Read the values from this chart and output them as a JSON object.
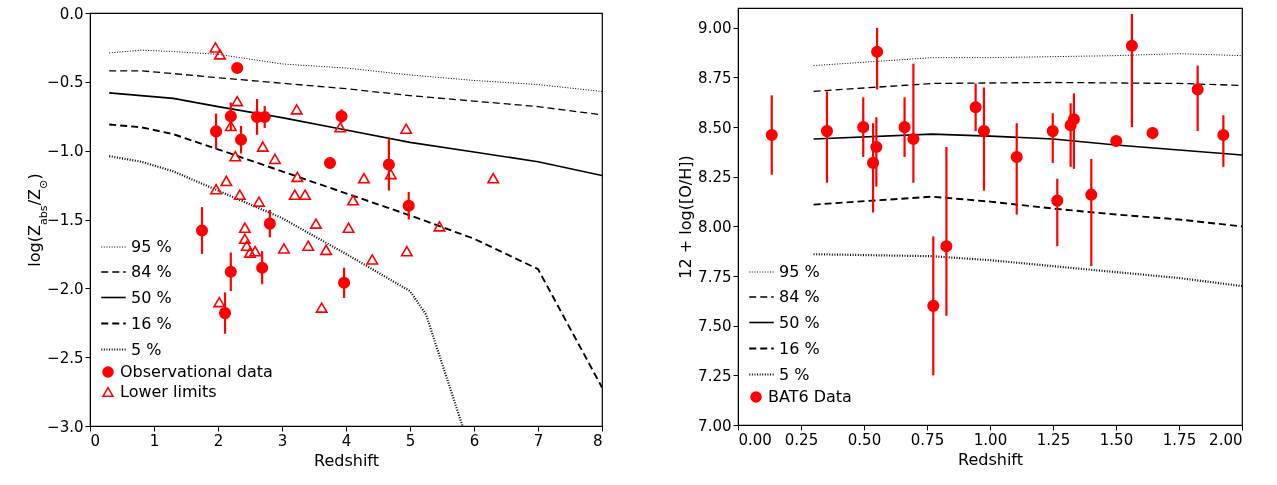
{
  "chart_data": [
    {
      "type": "scatter",
      "xlabel": "Redshift",
      "ylabel": "log(Z$_{abs}$/Z$_{⊙}$)",
      "xlim": [
        0,
        8
      ],
      "ylim": [
        -3,
        0
      ],
      "xticks": [
        0,
        1,
        2,
        3,
        4,
        5,
        6,
        7,
        8
      ],
      "yticks": [
        {
          "value": -3,
          "label": "−3.0"
        },
        {
          "value": -2.5,
          "label": "−2.5"
        },
        {
          "value": -2,
          "label": "−2.0"
        },
        {
          "value": -1.5,
          "label": "−1.5"
        },
        {
          "value": -1,
          "label": "−1.0"
        },
        {
          "value": -0.5,
          "label": "−0.5"
        },
        {
          "value": 0,
          "label": "0.0"
        }
      ],
      "grid": false,
      "legend": "bottom left",
      "series": [
        {
          "name": "95 %",
          "type": "line",
          "line_style": "dotted",
          "color": "#000000",
          "x": [
            0.3,
            0.8,
            1.3,
            2,
            3,
            4,
            5,
            6,
            7,
            8
          ],
          "values": [
            -0.29,
            -0.27,
            -0.28,
            -0.3,
            -0.37,
            -0.4,
            -0.45,
            -0.49,
            -0.52,
            -0.57
          ]
        },
        {
          "name": "84 %",
          "type": "line",
          "line_style": "dashed",
          "color": "#000000",
          "x": [
            0.3,
            0.8,
            1.3,
            2,
            3,
            4,
            5,
            6,
            7,
            8
          ],
          "values": [
            -0.42,
            -0.42,
            -0.44,
            -0.47,
            -0.51,
            -0.55,
            -0.6,
            -0.64,
            -0.68,
            -0.74
          ]
        },
        {
          "name": "50 %",
          "type": "line",
          "line_style": "solid",
          "color": "#000000",
          "x": [
            0.3,
            0.8,
            1.3,
            2,
            3,
            4,
            5,
            6,
            7,
            8
          ],
          "values": [
            -0.58,
            -0.6,
            -0.62,
            -0.68,
            -0.76,
            -0.85,
            -0.94,
            -1.01,
            -1.08,
            -1.18
          ]
        },
        {
          "name": "16 %",
          "type": "line",
          "line_style": "dashed",
          "color": "#000000",
          "x": [
            0.3,
            0.8,
            1.3,
            2,
            3,
            4,
            5,
            6,
            7,
            8
          ],
          "values": [
            -0.81,
            -0.83,
            -0.88,
            -0.99,
            -1.15,
            -1.31,
            -1.47,
            -1.64,
            -1.86,
            -2.72
          ]
        },
        {
          "name": "5 %",
          "type": "line",
          "line_style": "dotted",
          "color": "#000000",
          "x": [
            0.3,
            0.8,
            1.3,
            2,
            3,
            4,
            5,
            5.25,
            5.82
          ],
          "values": [
            -1.04,
            -1.08,
            -1.15,
            -1.29,
            -1.49,
            -1.75,
            -2.02,
            -2.19,
            -3.0
          ]
        },
        {
          "name": "Observational data",
          "type": "scatter",
          "marker": "circle",
          "color": "#ff0000",
          "x": [
            2.3,
            1.97,
            2.2,
            2.36,
            2.61,
            2.73,
            1.75,
            2.81,
            2.2,
            2.69,
            2.11,
            3.93,
            3.75,
            4.67,
            4.98,
            3.97
          ],
          "values": [
            -0.4,
            -0.86,
            -0.75,
            -0.92,
            -0.755,
            -0.755,
            -1.58,
            -1.53,
            -1.88,
            -1.85,
            -2.18,
            -0.75,
            -1.09,
            -1.1,
            -1.4,
            -1.96
          ],
          "errors": [
            0.03,
            0.13,
            0.1,
            0.1,
            0.13,
            0.08,
            0.17,
            0.1,
            0.14,
            0.12,
            0.15,
            0.05,
            0.04,
            0.19,
            0.1,
            0.11
          ]
        },
        {
          "name": "Lower limits",
          "type": "scatter",
          "marker": "triangle",
          "color": "#ff0000",
          "x": [
            1.96,
            2.03,
            2.3,
            2.2,
            2.27,
            3.23,
            2.7,
            2.89,
            3.24,
            3.2,
            3.36,
            2.13,
            1.97,
            2.34,
            2.64,
            2.42,
            2.42,
            2.45,
            2.5,
            2.58,
            3.03,
            3.41,
            2.02,
            3.91,
            4.94,
            4.7,
            4.28,
            6.3,
            4.11,
            3.53,
            4.04,
            5.46,
            3.69,
            4.41,
            4.95,
            3.62
          ],
          "values": [
            -0.25,
            -0.3,
            -0.64,
            -0.82,
            -1.04,
            -0.7,
            -0.97,
            -1.06,
            -1.19,
            -1.32,
            -1.32,
            -1.22,
            -1.28,
            -1.32,
            -1.37,
            -1.56,
            -1.64,
            -1.69,
            -1.74,
            -1.73,
            -1.71,
            -1.69,
            -2.1,
            -0.83,
            -0.84,
            -1.17,
            -1.2,
            -1.2,
            -1.36,
            -1.53,
            -1.56,
            -1.55,
            -1.72,
            -1.79,
            -1.73,
            -2.14
          ]
        }
      ]
    },
    {
      "type": "scatter",
      "xlabel": "Redshift",
      "ylabel": "12 + log([O/H])",
      "xlim": [
        0,
        2
      ],
      "ylim": [
        7,
        9.1
      ],
      "xticks": [
        {
          "value": 0,
          "label": "0.00"
        },
        {
          "value": 0.25,
          "label": "0.25"
        },
        {
          "value": 0.5,
          "label": "0.50"
        },
        {
          "value": 0.75,
          "label": "0.75"
        },
        {
          "value": 1,
          "label": "1.00"
        },
        {
          "value": 1.25,
          "label": "1.25"
        },
        {
          "value": 1.5,
          "label": "1.50"
        },
        {
          "value": 1.75,
          "label": "1.75"
        },
        {
          "value": 2,
          "label": "2.00"
        }
      ],
      "yticks": [
        {
          "value": 7,
          "label": "7.00"
        },
        {
          "value": 7.25,
          "label": "7.25"
        },
        {
          "value": 7.5,
          "label": "7.50"
        },
        {
          "value": 7.75,
          "label": "7.75"
        },
        {
          "value": 8,
          "label": "8.00"
        },
        {
          "value": 8.25,
          "label": "8.25"
        },
        {
          "value": 8.5,
          "label": "8.50"
        },
        {
          "value": 8.75,
          "label": "8.75"
        },
        {
          "value": 9,
          "label": "9.00"
        }
      ],
      "grid": false,
      "legend": "bottom left",
      "series": [
        {
          "name": "95 %",
          "type": "line",
          "line_style": "dotted",
          "color": "#000000",
          "x": [
            0.3,
            0.77,
            1.0,
            1.25,
            1.5,
            1.75,
            2.0
          ],
          "values": [
            8.81,
            8.85,
            8.85,
            8.855,
            8.86,
            8.87,
            8.86
          ]
        },
        {
          "name": "84 %",
          "type": "line",
          "line_style": "dashed",
          "color": "#000000",
          "x": [
            0.3,
            0.77,
            1.25,
            1.75,
            2.0
          ],
          "values": [
            8.68,
            8.72,
            8.725,
            8.72,
            8.71
          ]
        },
        {
          "name": "50 %",
          "type": "line",
          "line_style": "solid",
          "color": "#000000",
          "x": [
            0.3,
            0.77,
            1.0,
            1.25,
            1.5,
            1.75,
            2.0
          ],
          "values": [
            8.44,
            8.465,
            8.455,
            8.44,
            8.41,
            8.385,
            8.36
          ]
        },
        {
          "name": "16 %",
          "type": "line",
          "line_style": "dashed",
          "color": "#000000",
          "x": [
            0.3,
            0.77,
            1.0,
            1.25,
            1.5,
            1.75,
            2.0
          ],
          "values": [
            8.11,
            8.15,
            8.125,
            8.09,
            8.06,
            8.035,
            8.0
          ]
        },
        {
          "name": "5 %",
          "type": "line",
          "line_style": "dotted",
          "color": "#000000",
          "x": [
            0.3,
            0.77,
            1.0,
            1.25,
            1.5,
            1.75,
            2.0
          ],
          "values": [
            7.86,
            7.85,
            7.83,
            7.8,
            7.77,
            7.74,
            7.7
          ]
        },
        {
          "name": "BAT6 Data",
          "type": "scatter",
          "marker": "circle",
          "color": "#ff0000",
          "x": [
            0.134,
            0.353,
            0.497,
            0.536,
            0.549,
            0.552,
            0.661,
            0.696,
            0.775,
            0.827,
            0.943,
            0.976,
            1.106,
            1.249,
            1.267,
            1.32,
            1.333,
            1.402,
            1.501,
            1.563,
            1.645,
            1.824,
            1.926
          ],
          "values": [
            8.46,
            8.48,
            8.5,
            8.32,
            8.4,
            8.88,
            8.5,
            8.44,
            7.6,
            7.9,
            8.6,
            8.48,
            8.35,
            8.48,
            8.13,
            8.51,
            8.54,
            8.16,
            8.43,
            8.91,
            8.47,
            8.69,
            8.46
          ],
          "errors": [
            [
              8.26,
              8.66
            ],
            [
              8.22,
              8.68
            ],
            [
              8.35,
              8.65
            ],
            [
              8.07,
              8.52
            ],
            [
              8.2,
              8.55
            ],
            [
              8.69,
              9.0
            ],
            [
              8.35,
              8.65
            ],
            [
              8.22,
              8.82
            ],
            [
              7.25,
              7.95
            ],
            [
              7.55,
              8.4
            ],
            [
              8.48,
              8.72
            ],
            [
              8.18,
              8.7
            ],
            [
              8.06,
              8.52
            ],
            [
              8.32,
              8.57
            ],
            [
              7.9,
              8.24
            ],
            [
              8.3,
              8.62
            ],
            [
              8.29,
              8.67
            ],
            [
              7.8,
              8.34
            ],
            [
              8.41,
              8.45
            ],
            [
              8.5,
              9.07
            ],
            [
              8.44,
              8.5
            ],
            [
              8.48,
              8.81
            ],
            [
              8.3,
              8.56
            ]
          ]
        }
      ]
    }
  ]
}
